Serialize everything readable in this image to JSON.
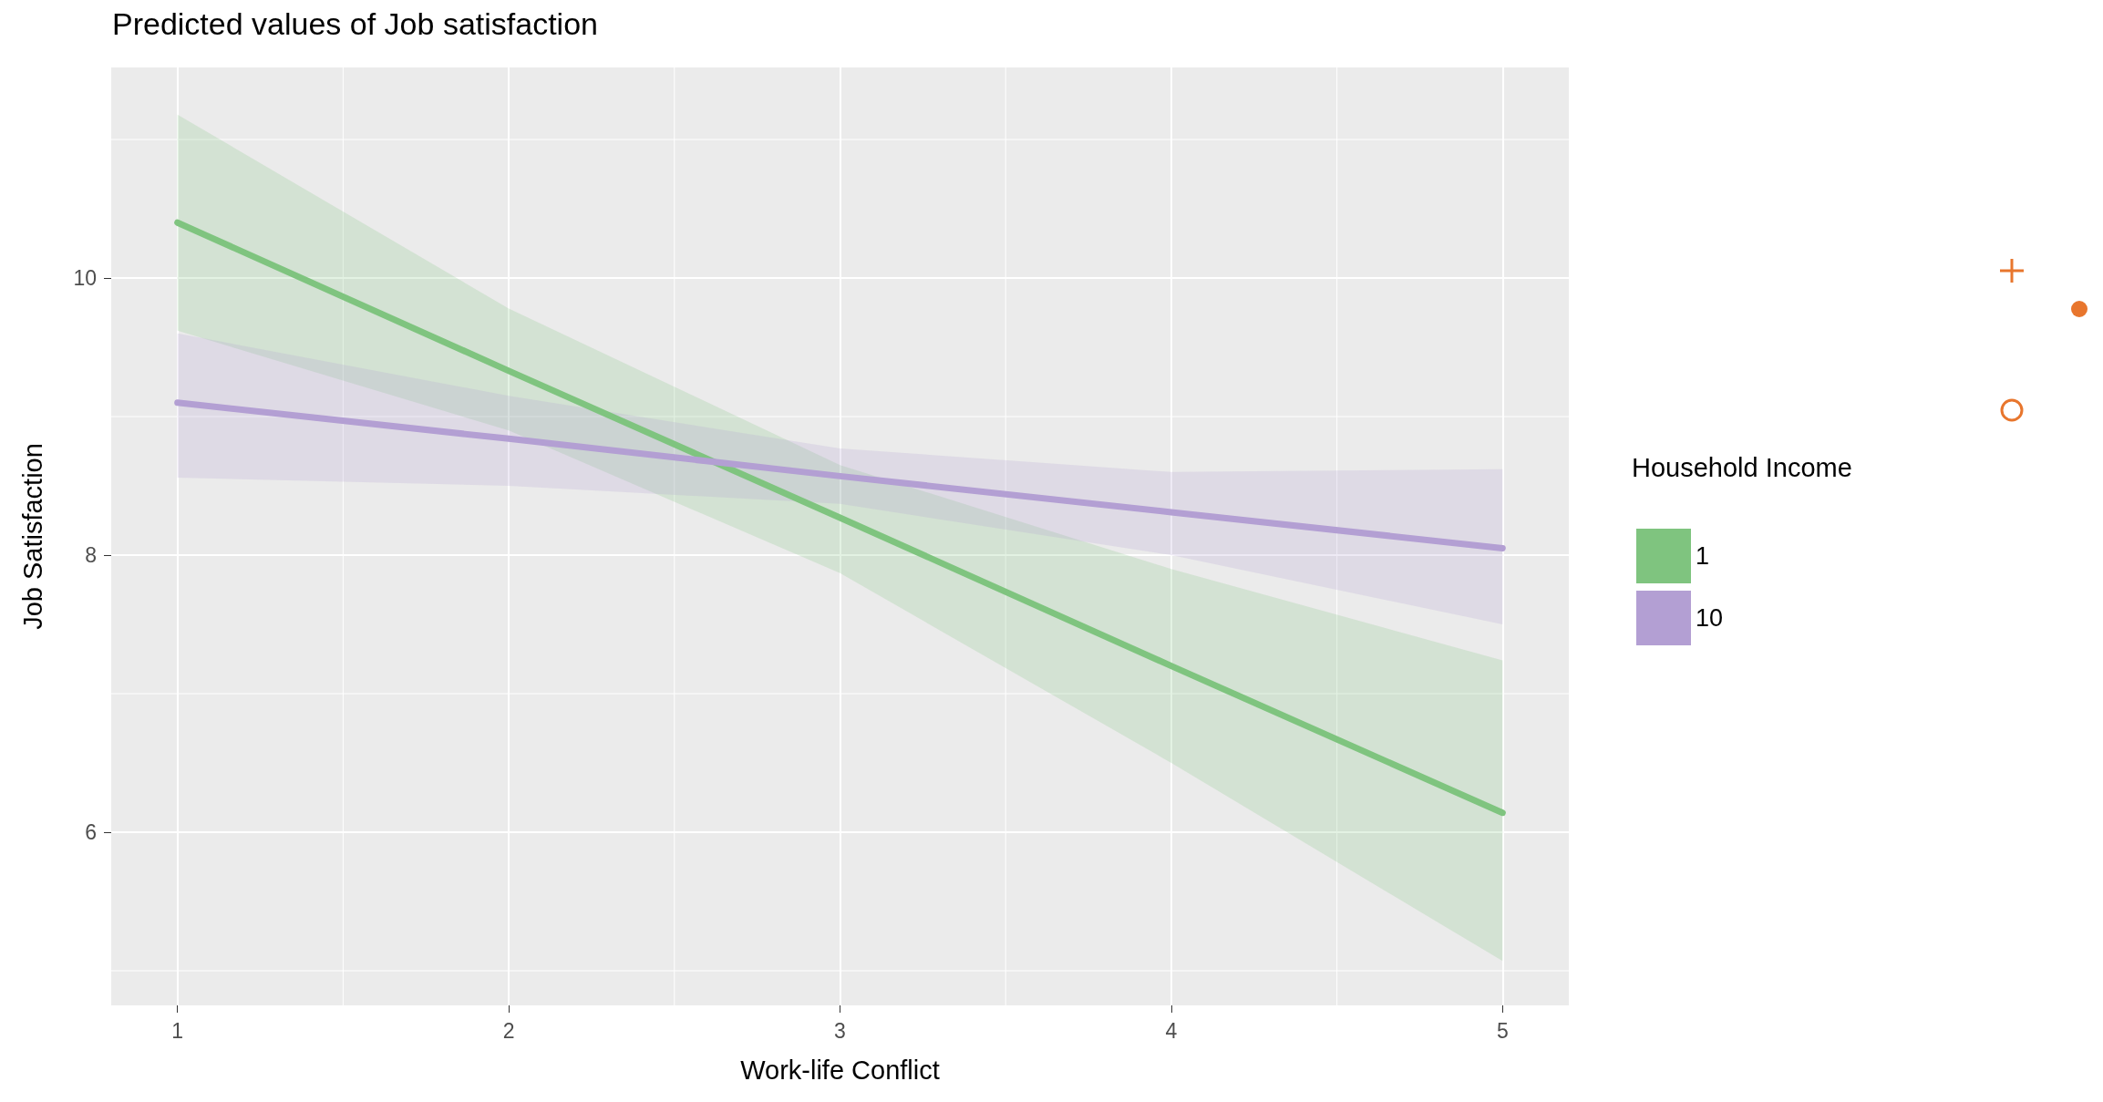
{
  "chart_data": {
    "type": "line",
    "title": "Predicted values of Job satisfaction",
    "xlabel": "Work-life Conflict",
    "ylabel": "Job Satisfaction",
    "legend_title": "Household Income",
    "x": [
      1,
      2,
      3,
      4,
      5
    ],
    "series": [
      {
        "name": "1",
        "color": "#7fc47f",
        "values": [
          10.4,
          9.33,
          8.27,
          7.2,
          6.14
        ],
        "lower": [
          9.62,
          8.9,
          7.87,
          6.5,
          5.07
        ],
        "upper": [
          11.18,
          9.78,
          8.65,
          7.9,
          7.24
        ]
      },
      {
        "name": "10",
        "color": "#b39fd3",
        "values": [
          9.1,
          8.84,
          8.57,
          8.31,
          8.05
        ],
        "lower": [
          8.56,
          8.5,
          8.37,
          8.0,
          7.5
        ],
        "upper": [
          9.6,
          9.15,
          8.77,
          8.6,
          8.62
        ]
      }
    ],
    "xlim": [
      0.8,
      5.2
    ],
    "xticks": [
      1,
      2,
      3,
      4,
      5
    ],
    "ylim": [
      4.75,
      11.52
    ],
    "yticks": [
      6,
      8,
      10
    ],
    "grid": true,
    "legend": "right",
    "marker": "none",
    "line_style": "solid"
  }
}
